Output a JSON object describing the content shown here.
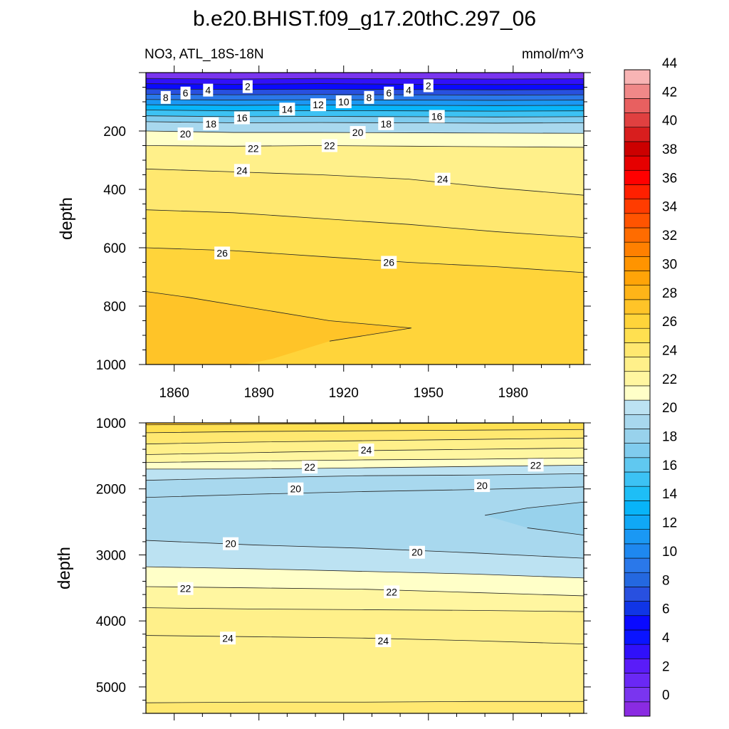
{
  "chart_data": [
    {
      "type": "contour",
      "title": "b.e20.BHIST.f09_g17.20thC.297_06",
      "subtitle_left": "NO3, ATL_18S-18N",
      "subtitle_right": "mmol/m^3",
      "xlabel": "",
      "ylabel": "depth",
      "xlim": [
        1850,
        2005
      ],
      "ylim": [
        1000,
        0
      ],
      "x_ticks": [
        "1860",
        "1890",
        "1920",
        "1950",
        "1980"
      ],
      "y_ticks": [
        "200",
        "400",
        "600",
        "800",
        "1000"
      ],
      "contour_lines": [
        {
          "value": 2,
          "depths": [
            20,
            22,
            20,
            21,
            22,
            21
          ]
        },
        {
          "value": 4,
          "depths": [
            38,
            40,
            38,
            40,
            41,
            40
          ]
        },
        {
          "value": 6,
          "depths": [
            56,
            58,
            57,
            58,
            59,
            58
          ]
        },
        {
          "value": 8,
          "depths": [
            74,
            76,
            75,
            76,
            77,
            76
          ]
        },
        {
          "value": 10,
          "depths": [
            92,
            94,
            93,
            94,
            95,
            94
          ]
        },
        {
          "value": 12,
          "depths": [
            110,
            112,
            111,
            112,
            113,
            112
          ]
        },
        {
          "value": 14,
          "depths": [
            128,
            131,
            130,
            131,
            132,
            131
          ]
        },
        {
          "value": 16,
          "depths": [
            148,
            151,
            150,
            151,
            152,
            151
          ]
        },
        {
          "value": 18,
          "depths": [
            168,
            172,
            171,
            172,
            173,
            172
          ]
        },
        {
          "value": 20,
          "depths": [
            200,
            205,
            205,
            206,
            207,
            208
          ]
        },
        {
          "value": 22,
          "depths": [
            250,
            252,
            250,
            252,
            254,
            256
          ]
        },
        {
          "value": 24,
          "depths": [
            330,
            340,
            350,
            365,
            395,
            420
          ]
        },
        {
          "value": 25,
          "depths": [
            470,
            480,
            500,
            520,
            545,
            565
          ]
        },
        {
          "value": 26,
          "depths": [
            600,
            610,
            630,
            650,
            665,
            685
          ]
        },
        {
          "value": 27,
          "depths": [
            750,
            800,
            860,
            875
          ]
        }
      ],
      "line_labels": [
        {
          "text": "2",
          "x": 1886,
          "depth": 48
        },
        {
          "text": "2",
          "x": 1950,
          "depth": 45
        },
        {
          "text": "4",
          "x": 1872,
          "depth": 60
        },
        {
          "text": "4",
          "x": 1943,
          "depth": 60
        },
        {
          "text": "6",
          "x": 1864,
          "depth": 70
        },
        {
          "text": "6",
          "x": 1936,
          "depth": 70
        },
        {
          "text": "8",
          "x": 1857,
          "depth": 85
        },
        {
          "text": "8",
          "x": 1929,
          "depth": 85
        },
        {
          "text": "10",
          "x": 1920,
          "depth": 100
        },
        {
          "text": "12",
          "x": 1911,
          "depth": 110
        },
        {
          "text": "14",
          "x": 1900,
          "depth": 125
        },
        {
          "text": "16",
          "x": 1884,
          "depth": 155
        },
        {
          "text": "16",
          "x": 1953,
          "depth": 150
        },
        {
          "text": "18",
          "x": 1873,
          "depth": 175
        },
        {
          "text": "18",
          "x": 1935,
          "depth": 175
        },
        {
          "text": "20",
          "x": 1864,
          "depth": 210
        },
        {
          "text": "20",
          "x": 1925,
          "depth": 205
        },
        {
          "text": "22",
          "x": 1888,
          "depth": 260
        },
        {
          "text": "22",
          "x": 1915,
          "depth": 250
        },
        {
          "text": "24",
          "x": 1884,
          "depth": 335
        },
        {
          "text": "24",
          "x": 1955,
          "depth": 365
        },
        {
          "text": "26",
          "x": 1877,
          "depth": 618
        },
        {
          "text": "26",
          "x": 1936,
          "depth": 650
        }
      ]
    },
    {
      "type": "contour",
      "xlabel": "",
      "ylabel": "depth",
      "xlim": [
        1850,
        2005
      ],
      "ylim": [
        5400,
        1000
      ],
      "y_ticks": [
        "1000",
        "2000",
        "3000",
        "4000",
        "5000"
      ],
      "contour_lines": [
        {
          "value": 27,
          "depths": [
            1030,
            1020,
            1010,
            1005,
            1000
          ]
        },
        {
          "value": 26,
          "depths": [
            1150,
            1130,
            1120,
            1110,
            1100
          ]
        },
        {
          "value": 25,
          "depths": [
            1320,
            1290,
            1270,
            1250,
            1230
          ]
        },
        {
          "value": 24,
          "depths": [
            1480,
            1450,
            1420,
            1400,
            1380
          ]
        },
        {
          "value": 23,
          "depths": [
            1600,
            1580,
            1560,
            1550,
            1530
          ]
        },
        {
          "value": 22,
          "depths": [
            1700,
            1700,
            1680,
            1660,
            1640
          ]
        },
        {
          "value": 21,
          "depths": [
            1870,
            1830,
            1800,
            1790,
            1770
          ]
        },
        {
          "value": 20,
          "depths": [
            2130,
            2080,
            2040,
            2010,
            1970
          ]
        },
        {
          "value": 19.5,
          "depths": [
            2780,
            2850,
            2900,
            2970,
            3050
          ]
        },
        {
          "value": 20,
          "depths": [
            3180,
            3210,
            3250,
            3290,
            3350
          ]
        },
        {
          "value": 21,
          "depths": [
            3480,
            3500,
            3520,
            3570,
            3620
          ]
        },
        {
          "value": 22,
          "depths": [
            3800,
            3820,
            3830,
            3840,
            3860
          ]
        },
        {
          "value": 23,
          "depths": [
            4220,
            4240,
            4260,
            4300,
            4350
          ]
        },
        {
          "value": 24,
          "depths": [
            5240,
            5230,
            5230,
            5220,
            5220
          ]
        }
      ],
      "line_labels": [
        {
          "text": "24",
          "x": 1928,
          "depth": 1410
        },
        {
          "text": "22",
          "x": 1908,
          "depth": 1670
        },
        {
          "text": "22",
          "x": 1988,
          "depth": 1640
        },
        {
          "text": "20",
          "x": 1903,
          "depth": 2000
        },
        {
          "text": "20",
          "x": 1969,
          "depth": 1950
        },
        {
          "text": "20",
          "x": 1880,
          "depth": 2830
        },
        {
          "text": "20",
          "x": 1946,
          "depth": 2960
        },
        {
          "text": "22",
          "x": 1864,
          "depth": 3510
        },
        {
          "text": "22",
          "x": 1937,
          "depth": 3560
        },
        {
          "text": "24",
          "x": 1879,
          "depth": 4260
        },
        {
          "text": "24",
          "x": 1934,
          "depth": 4300
        }
      ]
    }
  ],
  "colorbar": {
    "tick_labels": [
      "0",
      "2",
      "4",
      "6",
      "8",
      "10",
      "12",
      "14",
      "16",
      "18",
      "20",
      "22",
      "24",
      "26",
      "28",
      "30",
      "32",
      "34",
      "36",
      "38",
      "40",
      "42",
      "44"
    ],
    "colors": [
      "#8a2be2",
      "#7a35ef",
      "#6a28f5",
      "#5a1cf8",
      "#3010fa",
      "#0a14ff",
      "#0a0aff",
      "#1035e6",
      "#2850e0",
      "#2468e0",
      "#2a78ea",
      "#1e88f0",
      "#1a98f4",
      "#10a8f6",
      "#08b4f8",
      "#1ebef6",
      "#3cc2f4",
      "#60c8f0",
      "#80ccee",
      "#98d2ec",
      "#a8d8ee",
      "#bce2f2",
      "#ffffc8",
      "#fff6a0",
      "#fff08a",
      "#ffe870",
      "#ffe050",
      "#ffd43a",
      "#ffc428",
      "#ffb418",
      "#ffa408",
      "#ff9400",
      "#ff8000",
      "#ff6c00",
      "#ff5400",
      "#ff3c00",
      "#ff2000",
      "#ff0000",
      "#e60000",
      "#cc0000",
      "#d81e1e",
      "#e04040",
      "#e86060",
      "#f08888",
      "#f8b4b4"
    ]
  }
}
